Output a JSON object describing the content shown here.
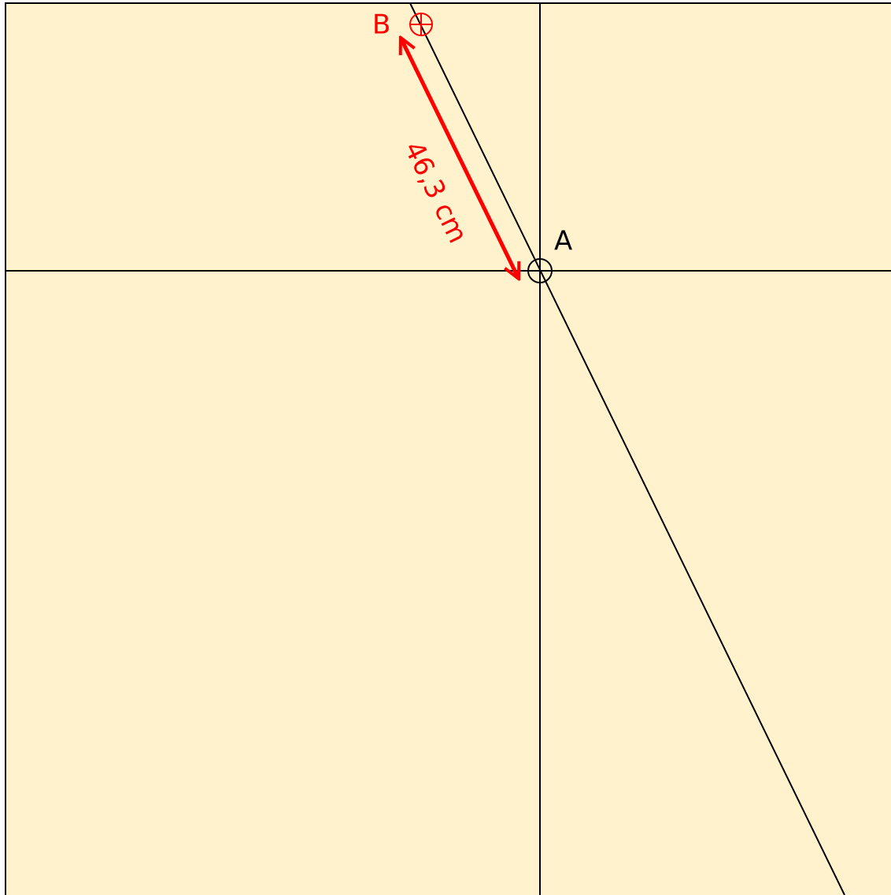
{
  "points": {
    "a": {
      "label": "A"
    },
    "b": {
      "label": "B"
    }
  },
  "measurement": {
    "label": "46,3 cm"
  }
}
